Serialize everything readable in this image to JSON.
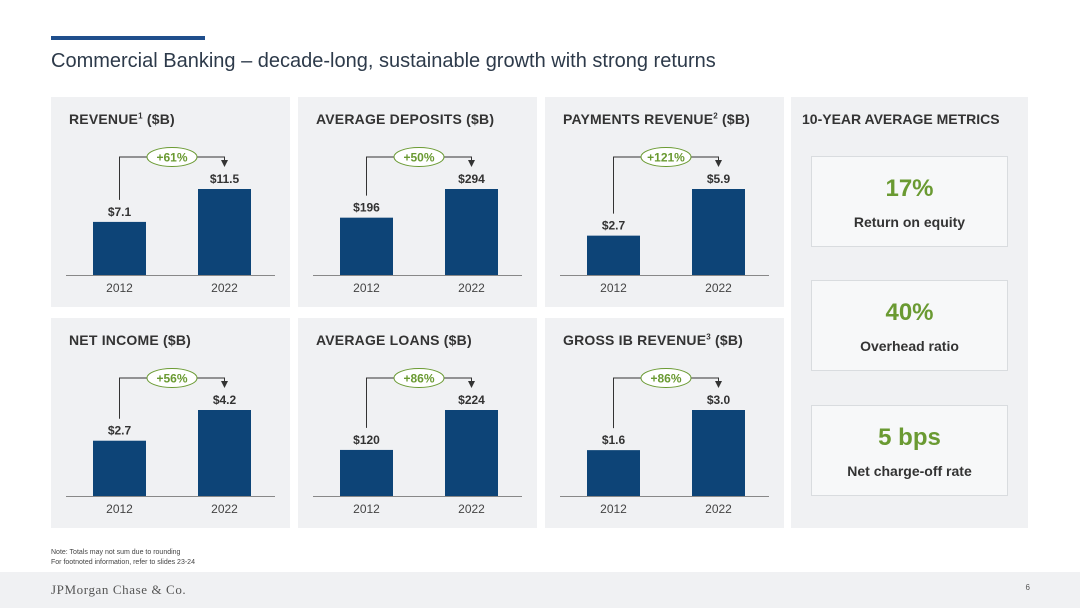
{
  "slide": {
    "title": "Commercial Banking – decade-long, sustainable growth with strong returns",
    "notes": [
      "Note: Totals may not sum due to rounding",
      "For footnoted information, refer to slides 23-24"
    ],
    "footer_logo": "JPMorgan Chase & Co.",
    "page_number": "6"
  },
  "colors": {
    "bar": "#0d4477",
    "growth": "#6a9a32",
    "axis": "#888888"
  },
  "chart_data": [
    {
      "type": "bar",
      "title": "REVENUE",
      "footnote": "1",
      "unit": "($B)",
      "categories": [
        "2012",
        "2022"
      ],
      "values": [
        7.1,
        11.5
      ],
      "value_labels": [
        "$7.1",
        "$11.5"
      ],
      "growth_label": "+61%"
    },
    {
      "type": "bar",
      "title": "AVERAGE DEPOSITS",
      "footnote": "",
      "unit": "($B)",
      "categories": [
        "2012",
        "2022"
      ],
      "values": [
        196,
        294
      ],
      "value_labels": [
        "$196",
        "$294"
      ],
      "growth_label": "+50%"
    },
    {
      "type": "bar",
      "title": "PAYMENTS REVENUE",
      "footnote": "2",
      "unit": "($B)",
      "categories": [
        "2012",
        "2022"
      ],
      "values": [
        2.7,
        5.9
      ],
      "value_labels": [
        "$2.7",
        "$5.9"
      ],
      "growth_label": "+121%"
    },
    {
      "type": "bar",
      "title": "NET INCOME",
      "footnote": "",
      "unit": "($B)",
      "categories": [
        "2012",
        "2022"
      ],
      "values": [
        2.7,
        4.2
      ],
      "value_labels": [
        "$2.7",
        "$4.2"
      ],
      "growth_label": "+56%"
    },
    {
      "type": "bar",
      "title": "AVERAGE LOANS",
      "footnote": "",
      "unit": "($B)",
      "categories": [
        "2012",
        "2022"
      ],
      "values": [
        120,
        224
      ],
      "value_labels": [
        "$120",
        "$224"
      ],
      "growth_label": "+86%"
    },
    {
      "type": "bar",
      "title": "GROSS IB REVENUE",
      "footnote": "3",
      "unit": "($B)",
      "categories": [
        "2012",
        "2022"
      ],
      "values": [
        1.6,
        3.0
      ],
      "value_labels": [
        "$1.6",
        "$3.0"
      ],
      "growth_label": "+86%"
    }
  ],
  "metrics": {
    "title": "10-YEAR AVERAGE METRICS",
    "items": [
      {
        "value": "17%",
        "label": "Return on equity"
      },
      {
        "value": "40%",
        "label": "Overhead ratio"
      },
      {
        "value": "5 bps",
        "label": "Net charge-off rate"
      }
    ]
  }
}
